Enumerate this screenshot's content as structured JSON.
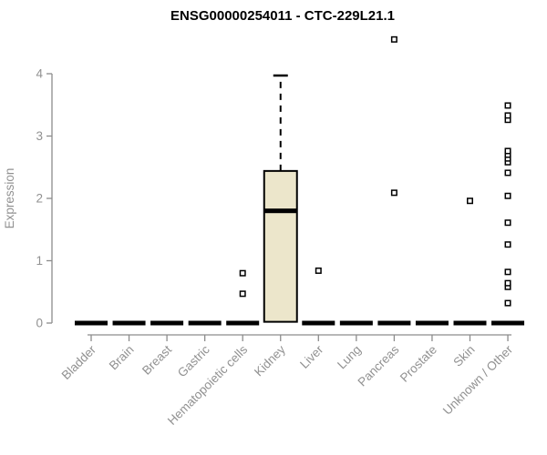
{
  "chart_data": {
    "type": "boxplot",
    "title": "ENSG00000254011 - CTC-229L21.1",
    "ylabel": "Expression",
    "xlabel": "",
    "ylim": [
      0,
      4
    ],
    "yticks": [
      0,
      1,
      2,
      3,
      4
    ],
    "grid": false,
    "legend": "none",
    "categories": [
      "Bladder",
      "Brain",
      "Breast",
      "Gastric",
      "Hematopoietic cells",
      "Kidney",
      "Liver",
      "Lung",
      "Pancreas",
      "Prostate",
      "Skin",
      "Unknown / Other"
    ],
    "boxes": [
      {
        "category": "Bladder",
        "q1": 0,
        "median": 0,
        "q3": 0,
        "whisker_low": 0,
        "whisker_high": 0,
        "outliers": []
      },
      {
        "category": "Brain",
        "q1": 0,
        "median": 0,
        "q3": 0,
        "whisker_low": 0,
        "whisker_high": 0,
        "outliers": []
      },
      {
        "category": "Breast",
        "q1": 0,
        "median": 0,
        "q3": 0,
        "whisker_low": 0,
        "whisker_high": 0,
        "outliers": []
      },
      {
        "category": "Gastric",
        "q1": 0,
        "median": 0,
        "q3": 0,
        "whisker_low": 0,
        "whisker_high": 0,
        "outliers": []
      },
      {
        "category": "Hematopoietic cells",
        "q1": 0,
        "median": 0,
        "q3": 0,
        "whisker_low": 0,
        "whisker_high": 0,
        "outliers": [
          0.47,
          0.8
        ]
      },
      {
        "category": "Kidney",
        "q1": 0.02,
        "median": 1.8,
        "q3": 2.44,
        "whisker_low": 0.02,
        "whisker_high": 3.97,
        "outliers": []
      },
      {
        "category": "Liver",
        "q1": 0,
        "median": 0,
        "q3": 0,
        "whisker_low": 0,
        "whisker_high": 0,
        "outliers": [
          0.84
        ]
      },
      {
        "category": "Lung",
        "q1": 0,
        "median": 0,
        "q3": 0,
        "whisker_low": 0,
        "whisker_high": 0,
        "outliers": []
      },
      {
        "category": "Pancreas",
        "q1": 0,
        "median": 0,
        "q3": 0,
        "whisker_low": 0,
        "whisker_high": 0,
        "outliers": [
          2.09,
          4.55
        ]
      },
      {
        "category": "Prostate",
        "q1": 0,
        "median": 0,
        "q3": 0,
        "whisker_low": 0,
        "whisker_high": 0,
        "outliers": []
      },
      {
        "category": "Skin",
        "q1": 0,
        "median": 0,
        "q3": 0,
        "whisker_low": 0,
        "whisker_high": 0,
        "outliers": [
          1.96
        ]
      },
      {
        "category": "Unknown / Other",
        "q1": 0,
        "median": 0,
        "q3": 0,
        "whisker_low": 0,
        "whisker_high": 0,
        "outliers": [
          0.32,
          0.58,
          0.64,
          0.82,
          1.26,
          1.61,
          2.04,
          2.41,
          2.58,
          2.64,
          2.7,
          2.76,
          3.26,
          3.33,
          3.49
        ]
      }
    ],
    "colors": {
      "box_fill": "#ECE6CB",
      "box_stroke": "#000000",
      "median_color": "#000000",
      "whisker_color": "#000000",
      "outlier_fill": "#ffffff",
      "outlier_stroke": "#000000",
      "axis_line": "#8C8C8C",
      "axis_text": "#919191",
      "title_color": "#000000",
      "background": "#ffffff"
    }
  }
}
